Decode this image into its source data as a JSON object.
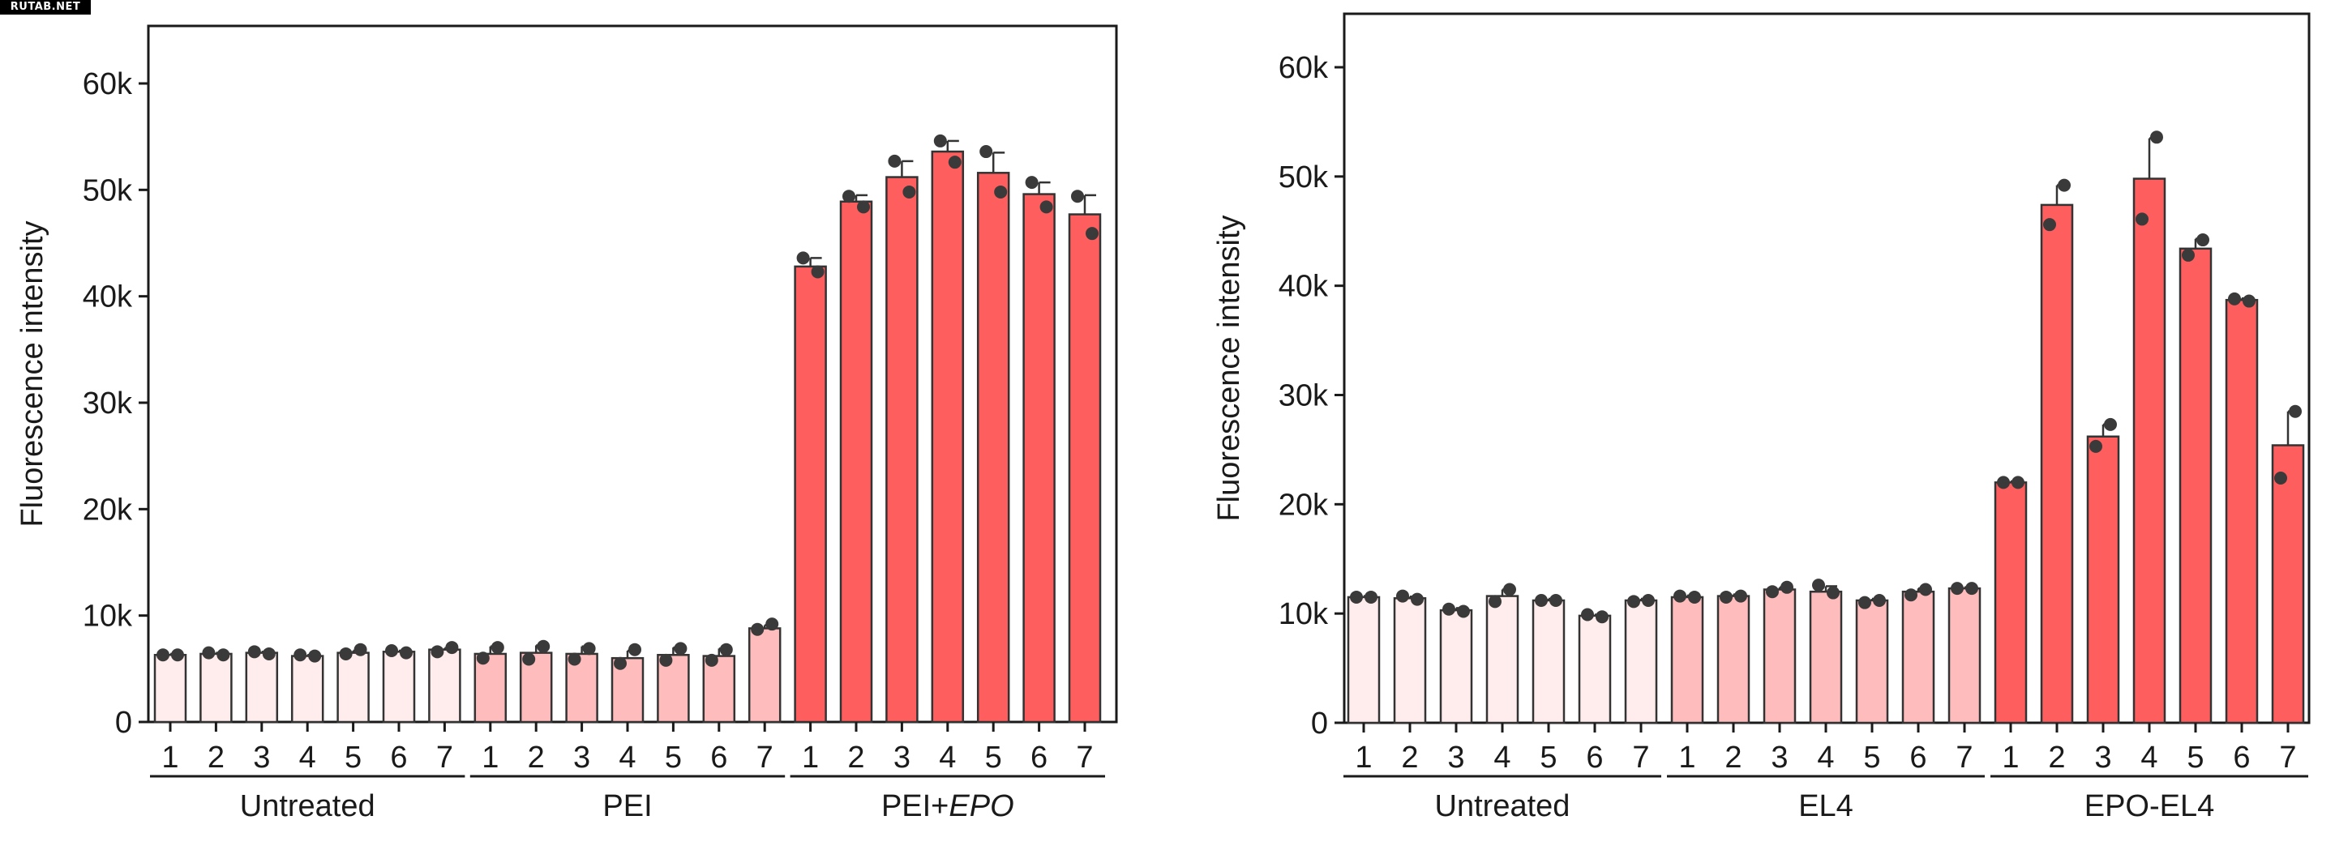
{
  "watermark": "RUTAB.NET",
  "chart_data": [
    {
      "type": "bar",
      "ylabel": "Fluorescence intensity",
      "ylim": [
        0,
        65000
      ],
      "yticks": [
        0,
        10000,
        20000,
        30000,
        40000,
        50000,
        60000
      ],
      "yticklabels": [
        "0",
        "10k",
        "20k",
        "30k",
        "40k",
        "50k",
        "60k"
      ],
      "categories": [
        "1",
        "2",
        "3",
        "4",
        "5",
        "6",
        "7",
        "1",
        "2",
        "3",
        "4",
        "5",
        "6",
        "7",
        "1",
        "2",
        "3",
        "4",
        "5",
        "6",
        "7"
      ],
      "groups": [
        {
          "label": "Untreated",
          "color": "#ffecec",
          "values": [
            6300,
            6400,
            6500,
            6200,
            6500,
            6600,
            6800
          ],
          "errors": [
            100,
            100,
            100,
            100,
            200,
            100,
            150
          ],
          "points": [
            [
              6300,
              6300
            ],
            [
              6500,
              6300
            ],
            [
              6600,
              6400
            ],
            [
              6300,
              6200
            ],
            [
              6400,
              6800
            ],
            [
              6700,
              6500
            ],
            [
              6600,
              7000
            ]
          ]
        },
        {
          "label": "PEI",
          "color": "#ffbcbc",
          "values": [
            6400,
            6500,
            6400,
            6000,
            6300,
            6200,
            8800
          ],
          "errors": [
            700,
            700,
            700,
            700,
            700,
            700,
            300
          ],
          "points": [
            [
              6000,
              7000
            ],
            [
              5900,
              7100
            ],
            [
              5900,
              6900
            ],
            [
              5500,
              6800
            ],
            [
              5800,
              6900
            ],
            [
              5800,
              6800
            ],
            [
              8700,
              9200
            ]
          ]
        },
        {
          "label": "PEI+EPO",
          "color": "#ff5e5e",
          "values": [
            42800,
            48900,
            51200,
            53600,
            51600,
            49600,
            47700
          ],
          "errors": [
            800,
            600,
            1500,
            1000,
            1900,
            1100,
            1800
          ],
          "points": [
            [
              43600,
              42300
            ],
            [
              49400,
              48400
            ],
            [
              52700,
              49800
            ],
            [
              54600,
              52600
            ],
            [
              53600,
              49800
            ],
            [
              50700,
              48400
            ],
            [
              49400,
              45900
            ]
          ]
        }
      ]
    },
    {
      "type": "bar",
      "ylabel": "Fluorescence intensity",
      "ylim": [
        0,
        65000
      ],
      "yticks": [
        0,
        10000,
        20000,
        30000,
        40000,
        50000,
        60000
      ],
      "yticklabels": [
        "0",
        "10k",
        "20k",
        "30k",
        "40k",
        "50k",
        "60k"
      ],
      "categories": [
        "1",
        "2",
        "3",
        "4",
        "5",
        "6",
        "7",
        "1",
        "2",
        "3",
        "4",
        "5",
        "6",
        "7",
        "1",
        "2",
        "3",
        "4",
        "5",
        "6",
        "7"
      ],
      "groups": [
        {
          "label": "Untreated",
          "color": "#ffecec",
          "values": [
            11500,
            11400,
            10300,
            11600,
            11200,
            9800,
            11200
          ],
          "errors": [
            100,
            150,
            200,
            600,
            150,
            100,
            150
          ],
          "points": [
            [
              11500,
              11500
            ],
            [
              11600,
              11300
            ],
            [
              10400,
              10200
            ],
            [
              11100,
              12200
            ],
            [
              11200,
              11200
            ],
            [
              9900,
              9700
            ],
            [
              11100,
              11200
            ]
          ]
        },
        {
          "label": "EL4",
          "color": "#ffbcbc",
          "values": [
            11500,
            11600,
            12200,
            12000,
            11200,
            12000,
            12300
          ],
          "errors": [
            150,
            150,
            200,
            500,
            150,
            300,
            100
          ],
          "points": [
            [
              11600,
              11500
            ],
            [
              11500,
              11600
            ],
            [
              12000,
              12400
            ],
            [
              12600,
              11900
            ],
            [
              11000,
              11200
            ],
            [
              11700,
              12200
            ],
            [
              12300,
              12300
            ]
          ]
        },
        {
          "label": "EPO-EL4",
          "color": "#ff5e5e",
          "values": [
            22000,
            47400,
            26200,
            49800,
            43400,
            38700,
            25400
          ],
          "errors": [
            100,
            1800,
            1100,
            3700,
            900,
            150,
            3100
          ],
          "points": [
            [
              22000,
              22000
            ],
            [
              45600,
              49200
            ],
            [
              25300,
              27300
            ],
            [
              46100,
              53600
            ],
            [
              42800,
              44200
            ],
            [
              38800,
              38600
            ],
            [
              22400,
              28500
            ]
          ]
        }
      ]
    }
  ]
}
